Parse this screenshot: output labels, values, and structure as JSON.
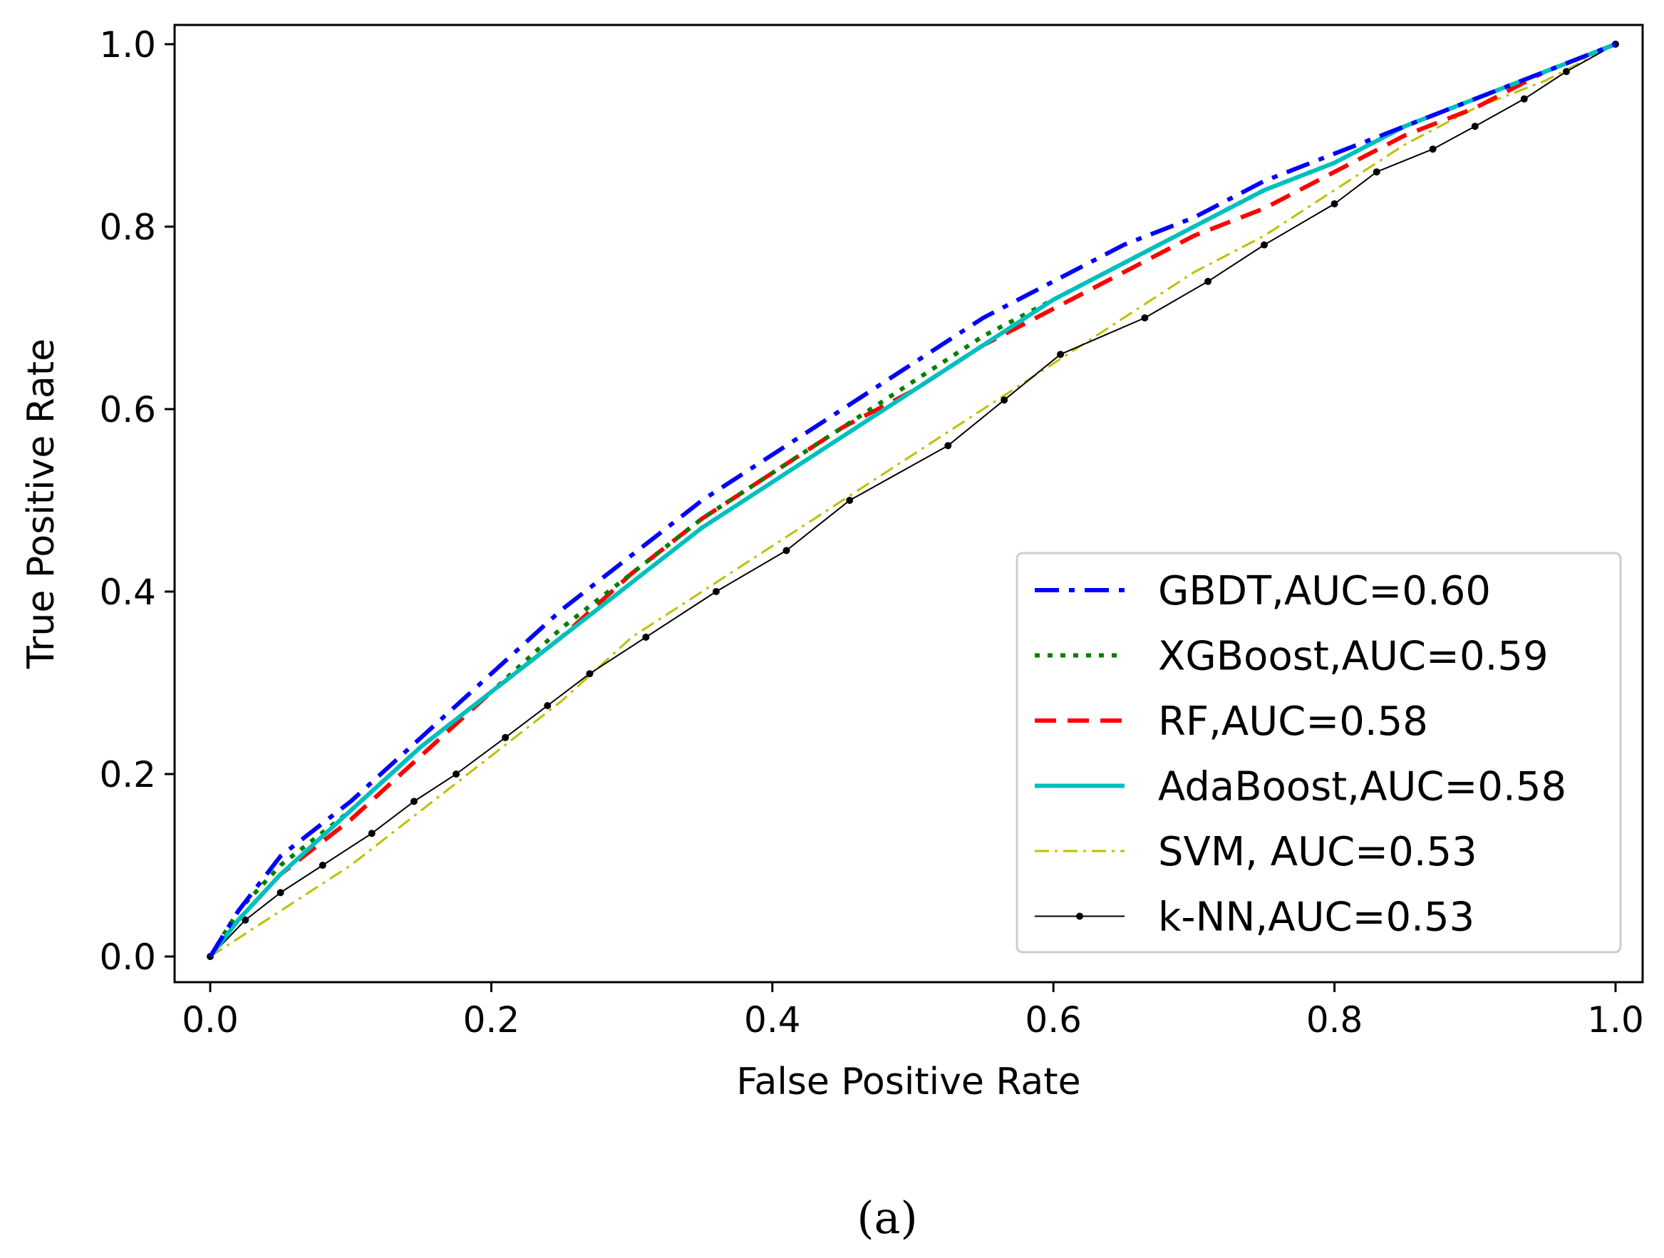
{
  "chart_data": {
    "type": "line",
    "title": "",
    "xlabel": "False Positive Rate",
    "ylabel": "True Positive Rate",
    "xlim": [
      0.0,
      1.0
    ],
    "ylim": [
      0.0,
      1.0
    ],
    "xticks": [
      "0.0",
      "0.2",
      "0.4",
      "0.6",
      "0.8",
      "1.0"
    ],
    "yticks": [
      "0.0",
      "0.2",
      "0.4",
      "0.6",
      "0.8",
      "1.0"
    ],
    "grid": false,
    "legend_position": "lower-right",
    "series": [
      {
        "name": "GBDT,AUC=0.60",
        "color": "#0000ff",
        "style": "dashdot",
        "x": [
          0.0,
          0.02,
          0.05,
          0.1,
          0.15,
          0.2,
          0.25,
          0.3,
          0.35,
          0.4,
          0.45,
          0.5,
          0.55,
          0.6,
          0.65,
          0.7,
          0.75,
          0.8,
          0.85,
          0.9,
          0.95,
          1.0
        ],
        "y": [
          0.0,
          0.05,
          0.11,
          0.17,
          0.24,
          0.31,
          0.38,
          0.44,
          0.5,
          0.55,
          0.6,
          0.65,
          0.7,
          0.74,
          0.78,
          0.81,
          0.85,
          0.88,
          0.91,
          0.94,
          0.97,
          1.0
        ]
      },
      {
        "name": "XGBoost,AUC=0.59",
        "color": "#008000",
        "style": "dotted",
        "x": [
          0.0,
          0.02,
          0.05,
          0.1,
          0.15,
          0.2,
          0.25,
          0.3,
          0.35,
          0.4,
          0.45,
          0.5,
          0.55,
          0.6,
          0.65,
          0.7,
          0.75,
          0.8,
          0.85,
          0.9,
          0.95,
          1.0
        ],
        "y": [
          0.0,
          0.05,
          0.1,
          0.16,
          0.23,
          0.29,
          0.36,
          0.42,
          0.48,
          0.53,
          0.58,
          0.63,
          0.68,
          0.72,
          0.76,
          0.8,
          0.84,
          0.87,
          0.91,
          0.94,
          0.97,
          1.0
        ]
      },
      {
        "name": "RF,AUC=0.58",
        "color": "#ff0000",
        "style": "dashed",
        "x": [
          0.0,
          0.02,
          0.05,
          0.1,
          0.15,
          0.2,
          0.25,
          0.3,
          0.35,
          0.4,
          0.45,
          0.5,
          0.55,
          0.6,
          0.65,
          0.7,
          0.75,
          0.8,
          0.85,
          0.9,
          0.95,
          1.0
        ],
        "y": [
          0.0,
          0.04,
          0.09,
          0.15,
          0.22,
          0.29,
          0.35,
          0.42,
          0.48,
          0.53,
          0.58,
          0.62,
          0.67,
          0.71,
          0.75,
          0.79,
          0.82,
          0.86,
          0.9,
          0.93,
          0.97,
          1.0
        ]
      },
      {
        "name": "AdaBoost,AUC=0.58",
        "color": "#00bfbf",
        "style": "solid",
        "x": [
          0.0,
          0.02,
          0.05,
          0.1,
          0.15,
          0.2,
          0.25,
          0.3,
          0.35,
          0.4,
          0.45,
          0.5,
          0.55,
          0.6,
          0.65,
          0.7,
          0.75,
          0.8,
          0.85,
          0.9,
          0.95,
          1.0
        ],
        "y": [
          0.0,
          0.04,
          0.09,
          0.16,
          0.23,
          0.29,
          0.35,
          0.41,
          0.47,
          0.52,
          0.57,
          0.62,
          0.67,
          0.72,
          0.76,
          0.8,
          0.84,
          0.87,
          0.91,
          0.94,
          0.97,
          1.0
        ]
      },
      {
        "name": "SVM, AUC=0.53",
        "color": "#bfbf00",
        "style": "dashdot-thin",
        "x": [
          0.0,
          0.05,
          0.1,
          0.15,
          0.2,
          0.25,
          0.3,
          0.35,
          0.4,
          0.45,
          0.5,
          0.55,
          0.6,
          0.65,
          0.7,
          0.75,
          0.8,
          0.85,
          0.9,
          0.95,
          1.0
        ],
        "y": [
          0.0,
          0.05,
          0.1,
          0.16,
          0.22,
          0.28,
          0.35,
          0.4,
          0.45,
          0.5,
          0.55,
          0.6,
          0.65,
          0.7,
          0.75,
          0.79,
          0.84,
          0.89,
          0.93,
          0.96,
          1.0
        ]
      },
      {
        "name": "k-NN,AUC=0.53",
        "color": "#000000",
        "style": "solid-markers",
        "x": [
          0.0,
          0.025,
          0.05,
          0.08,
          0.115,
          0.145,
          0.175,
          0.21,
          0.24,
          0.27,
          0.31,
          0.36,
          0.41,
          0.455,
          0.525,
          0.565,
          0.605,
          0.665,
          0.71,
          0.75,
          0.8,
          0.83,
          0.87,
          0.9,
          0.935,
          0.965,
          1.0
        ],
        "y": [
          0.0,
          0.04,
          0.07,
          0.1,
          0.135,
          0.17,
          0.2,
          0.24,
          0.275,
          0.31,
          0.35,
          0.4,
          0.445,
          0.5,
          0.56,
          0.61,
          0.66,
          0.7,
          0.74,
          0.78,
          0.825,
          0.86,
          0.885,
          0.91,
          0.94,
          0.97,
          1.0
        ]
      }
    ]
  },
  "caption": "(a)"
}
